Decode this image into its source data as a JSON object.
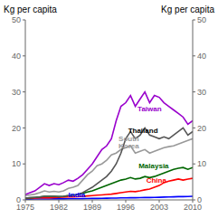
{
  "chart_data": {
    "type": "line",
    "x": [
      1975,
      1976,
      1977,
      1978,
      1979,
      1980,
      1981,
      1982,
      1983,
      1984,
      1985,
      1986,
      1987,
      1988,
      1989,
      1990,
      1991,
      1992,
      1993,
      1994,
      1995,
      1996,
      1997,
      1998,
      1999,
      2000,
      2001,
      2002,
      2003,
      2004,
      2005,
      2006,
      2007,
      2008,
      2009,
      2010
    ],
    "xlim": [
      1975,
      2010
    ],
    "xticks": [
      1975,
      1982,
      1989,
      1996,
      2003,
      2010
    ],
    "ylim": [
      0,
      50
    ],
    "yticks": [
      0,
      10,
      20,
      30,
      40,
      50
    ],
    "y2lim": [
      0,
      50
    ],
    "y2ticks": [
      0,
      10,
      20,
      30,
      40,
      50
    ],
    "ylabel": "Kg per capita",
    "y2label": "Kg per capita",
    "series": [
      {
        "name": "India",
        "color": "#0000FF",
        "values": [
          0.2,
          0.22,
          0.24,
          0.25,
          0.27,
          0.27,
          0.28,
          0.28,
          0.29,
          0.3,
          0.3,
          0.32,
          0.35,
          0.37,
          0.4,
          0.42,
          0.45,
          0.47,
          0.5,
          0.52,
          0.55,
          0.57,
          0.6,
          0.6,
          0.62,
          0.65,
          0.67,
          0.7,
          0.73,
          0.78,
          0.82,
          0.85,
          0.9,
          0.92,
          0.95,
          1.0
        ]
      },
      {
        "name": "China",
        "color": "#FF0000",
        "values": [
          0.4,
          0.45,
          0.5,
          0.55,
          0.6,
          0.6,
          0.65,
          0.7,
          0.75,
          0.8,
          0.85,
          0.9,
          1.0,
          1.1,
          1.2,
          1.3,
          1.4,
          1.5,
          1.6,
          1.8,
          2.0,
          2.2,
          2.4,
          2.3,
          2.5,
          2.8,
          3.0,
          3.5,
          4.0,
          4.8,
          5.2,
          5.5,
          5.8,
          5.5,
          5.8,
          6.0
        ]
      },
      {
        "name": "Malaysia",
        "color": "#006600",
        "values": [
          0.5,
          0.6,
          0.7,
          0.8,
          1.0,
          1.0,
          1.0,
          0.9,
          1.0,
          1.2,
          1.3,
          1.5,
          1.8,
          2.2,
          2.5,
          3.0,
          3.5,
          4.0,
          4.5,
          5.0,
          5.5,
          5.8,
          6.2,
          5.8,
          6.0,
          6.5,
          6.2,
          6.5,
          7.0,
          7.5,
          8.0,
          8.5,
          8.8,
          9.0,
          8.5,
          9.0
        ]
      },
      {
        "name": "South Korea",
        "color": "#999999",
        "values": [
          1.2,
          1.4,
          1.6,
          2.0,
          2.5,
          2.2,
          2.4,
          2.2,
          2.5,
          3.2,
          3.5,
          4.0,
          5.5,
          7.0,
          8.0,
          9.5,
          10.0,
          11.0,
          12.5,
          13.0,
          14.0,
          14.5,
          15.0,
          13.0,
          13.5,
          14.0,
          13.0,
          13.5,
          14.0,
          14.5,
          14.8,
          15.0,
          15.5,
          16.0,
          16.5,
          17.0
        ]
      },
      {
        "name": "Thailand",
        "color": "#555555",
        "values": [
          0.5,
          0.6,
          0.7,
          0.8,
          1.0,
          1.0,
          1.0,
          0.9,
          1.0,
          1.2,
          1.3,
          1.5,
          2.0,
          2.8,
          3.5,
          4.5,
          5.5,
          6.5,
          8.0,
          10.0,
          13.0,
          17.0,
          19.0,
          17.0,
          18.0,
          20.0,
          18.0,
          17.5,
          17.0,
          17.5,
          17.0,
          18.0,
          19.0,
          20.0,
          18.0,
          19.0
        ]
      },
      {
        "name": "Taiwan",
        "color": "#9900CC",
        "values": [
          1.5,
          2.0,
          2.5,
          3.5,
          4.5,
          4.0,
          4.5,
          4.2,
          4.8,
          5.5,
          5.2,
          6.0,
          7.0,
          8.5,
          10.0,
          12.0,
          14.0,
          15.0,
          17.0,
          22.0,
          26.0,
          27.0,
          29.0,
          26.0,
          28.0,
          30.0,
          27.0,
          29.0,
          28.5,
          27.0,
          26.0,
          25.0,
          24.0,
          23.0,
          21.0,
          22.0
        ]
      }
    ],
    "annotations": [
      {
        "text": "Taiwan",
        "x": 2003.5,
        "y": 24.5,
        "color": "#9900CC"
      },
      {
        "text": "Thailand",
        "x": 1996.5,
        "y": 18.5,
        "color": "#000000"
      },
      {
        "text": "South\nKorea",
        "x": 1994.5,
        "y": 14.2,
        "color": "#999999"
      },
      {
        "text": "Malaysia",
        "x": 2005.0,
        "y": 8.8,
        "color": "#006600"
      },
      {
        "text": "China",
        "x": 2004.5,
        "y": 4.8,
        "color": "#FF0000"
      },
      {
        "text": "India",
        "x": 1984.0,
        "y": 0.7,
        "color": "#0000FF"
      }
    ]
  }
}
